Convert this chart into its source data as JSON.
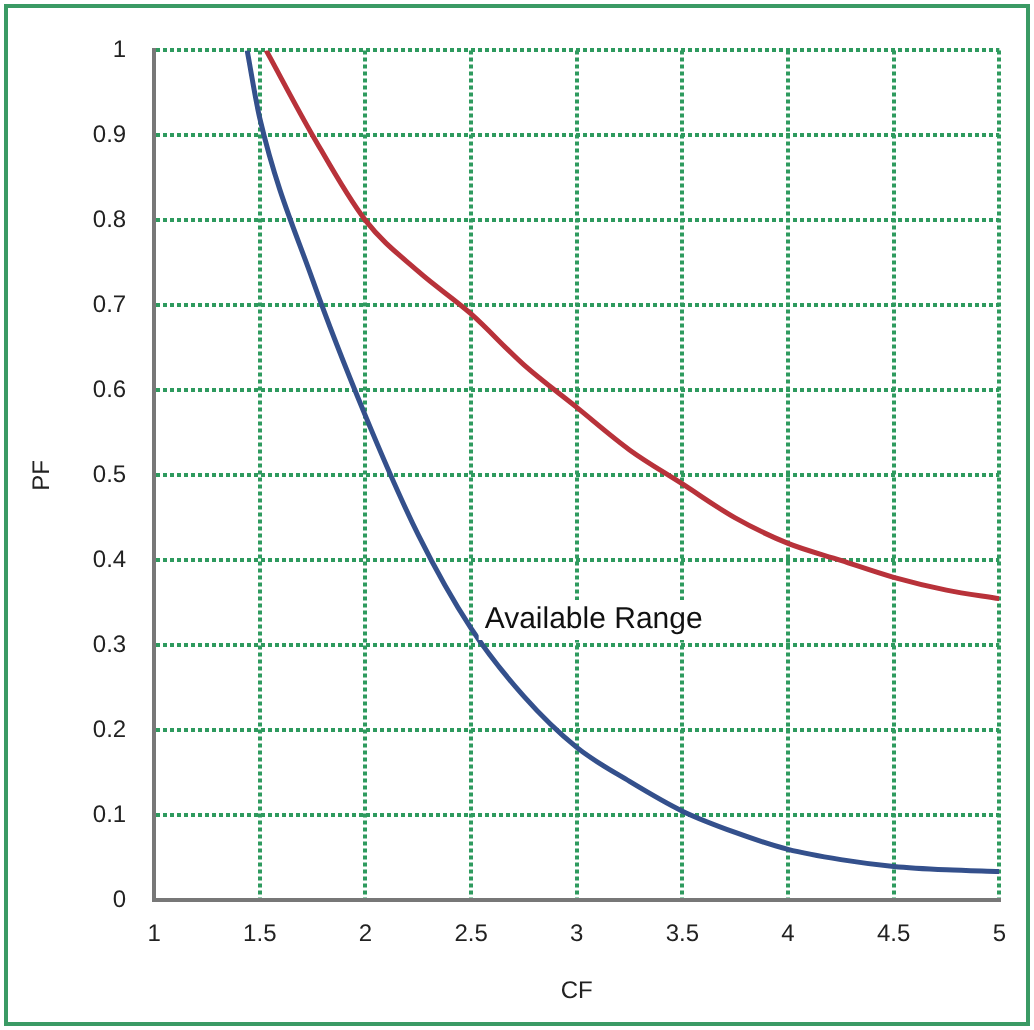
{
  "chart_data": {
    "type": "line",
    "xlabel": "CF",
    "ylabel": "PF",
    "xlim": [
      1,
      5
    ],
    "xticks": [
      1,
      1.5,
      2,
      2.5,
      3,
      3.5,
      4,
      4.5,
      5
    ],
    "ylim": [
      0,
      1
    ],
    "yticks": [
      0,
      0.1,
      0.2,
      0.3,
      0.4,
      0.5,
      0.6,
      0.7,
      0.8,
      0.9,
      1
    ],
    "grid": true,
    "legend": false,
    "marker": "none",
    "line_style": "solid",
    "annotations": [
      "Available Range"
    ],
    "series": [
      {
        "color": "#b8323a",
        "x": [
          1.53,
          1.75,
          2,
          2.25,
          2.5,
          2.75,
          3,
          3.25,
          3.5,
          3.75,
          4,
          4.25,
          4.5,
          4.75,
          5
        ],
        "values": [
          1,
          0.9,
          0.8,
          0.74,
          0.69,
          0.63,
          0.58,
          0.53,
          0.49,
          0.45,
          0.42,
          0.4,
          0.38,
          0.365,
          0.355
        ]
      },
      {
        "color": "#34508c",
        "x": [
          1.44,
          1.5,
          1.75,
          2,
          2.25,
          2.5,
          2.75,
          3,
          3.25,
          3.5,
          3.75,
          4,
          4.25,
          4.5,
          4.75,
          5
        ],
        "values": [
          1,
          0.92,
          0.73,
          0.57,
          0.43,
          0.32,
          0.24,
          0.18,
          0.14,
          0.105,
          0.08,
          0.06,
          0.048,
          0.04,
          0.036,
          0.034
        ]
      }
    ]
  }
}
